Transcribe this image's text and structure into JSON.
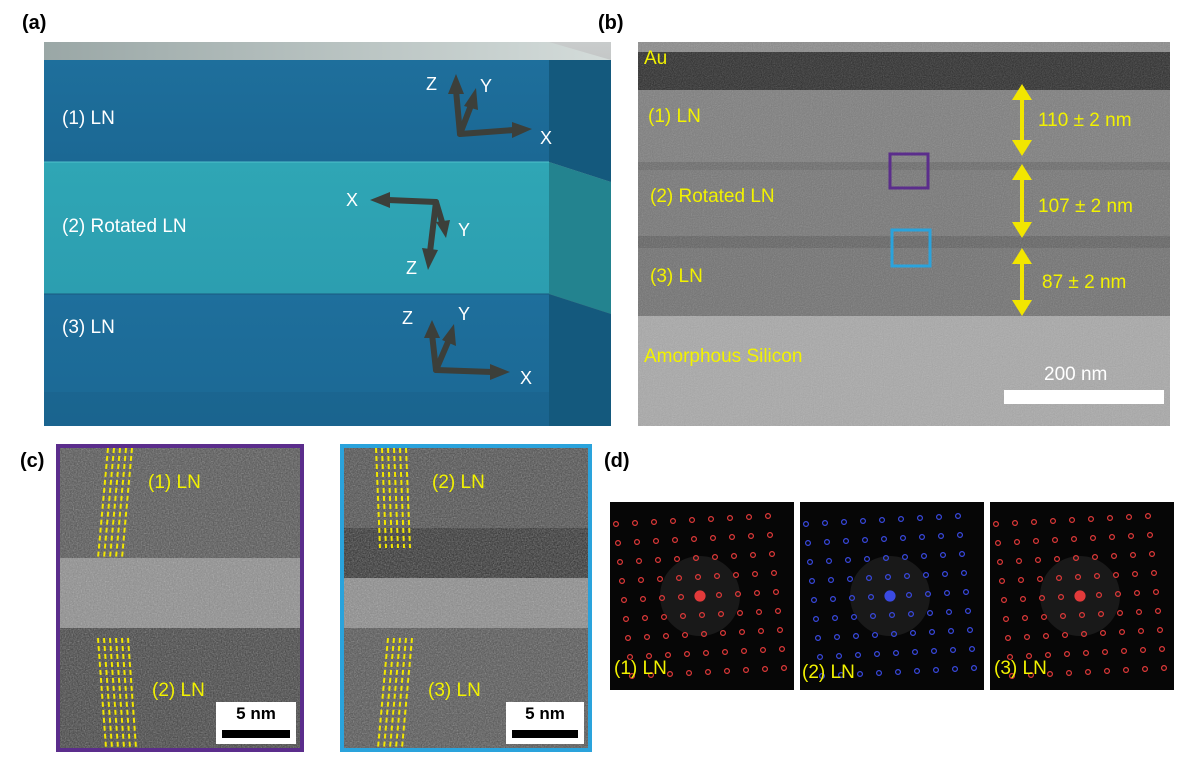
{
  "panels": {
    "a": {
      "label": "(a)",
      "layers": [
        "(1) LN",
        "(2) Rotated LN",
        "(3) LN"
      ],
      "axes": [
        {
          "z": "Z",
          "y": "Y",
          "x": "X"
        },
        {
          "z": "Z",
          "y": "Y",
          "x": "X"
        },
        {
          "z": "Z",
          "y": "Y",
          "x": "X"
        }
      ]
    },
    "b": {
      "label": "(b)",
      "top_layer": "Au",
      "layers": [
        "(1) LN",
        "(2) Rotated LN",
        "(3) LN"
      ],
      "substrate": "Amorphous Silicon",
      "thicknesses": [
        "110 ± 2 nm",
        "107 ± 2 nm",
        "87 ± 2 nm"
      ],
      "scale_bar": "200 nm"
    },
    "c": {
      "label": "(c)",
      "left": {
        "top": "(1) LN",
        "bottom": "(2) LN",
        "scale_bar": "5 nm",
        "frame_color": "#5b2d8c"
      },
      "right": {
        "top": "(2) LN",
        "bottom": "(3) LN",
        "scale_bar": "5 nm",
        "frame_color": "#2aa3dc"
      }
    },
    "d": {
      "label": "(d)",
      "patterns": [
        "(1) LN",
        "(2) LN",
        "(3) LN"
      ],
      "spot_colors": [
        "#e23a3a",
        "#3a4ae2",
        "#e23a3a"
      ]
    }
  }
}
